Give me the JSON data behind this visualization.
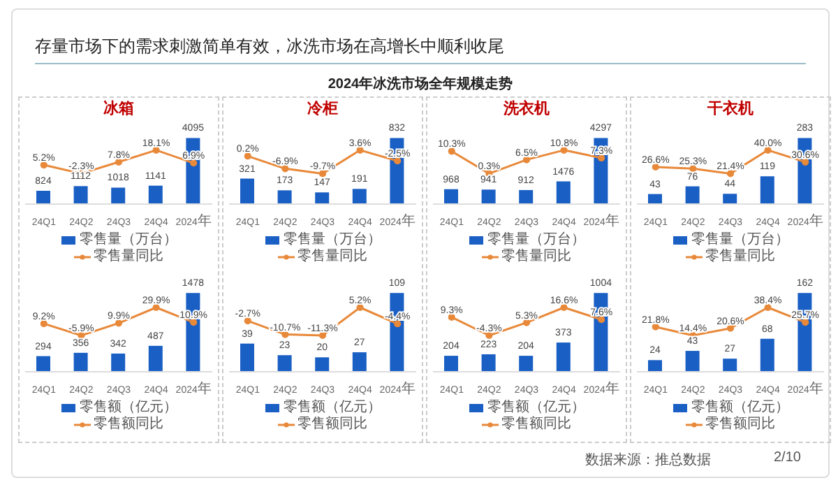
{
  "chart_data": [
    {
      "type": "other",
      "title": "存量市场下的需求刺激简单有效，冰洗市场在高增长中顺利收尾",
      "subtitle": "2024年冰洗市场全年规模走势",
      "annotations": [
        "数据来源：推总数据",
        "2/10"
      ]
    },
    {
      "type": "bar",
      "title": "冰箱",
      "categories": [
        "24Q1",
        "24Q2",
        "24Q3",
        "24Q4",
        "2024年"
      ],
      "series": [
        {
          "name": "零售量（万台）",
          "type": "bar",
          "color": "#1a5fc4",
          "values": [
            824,
            1112,
            1018,
            1141,
            4095
          ]
        },
        {
          "name": "零售量同比",
          "type": "line",
          "axis": "y2",
          "color": "#e8893a",
          "values": [
            5.2,
            -2.3,
            7.8,
            18.1,
            6.9
          ],
          "value_labels": [
            "5.2%",
            "-2.3%",
            "7.8%",
            "18.1%",
            "6.9%"
          ]
        }
      ],
      "data_labels": true,
      "legend": "bottom",
      "tick_labels": "x",
      "marker": "circle"
    },
    {
      "type": "bar",
      "title": "冷柜",
      "categories": [
        "24Q1",
        "24Q2",
        "24Q3",
        "24Q4",
        "2024年"
      ],
      "series": [
        {
          "name": "零售量（万台）",
          "type": "bar",
          "color": "#1a5fc4",
          "values": [
            321,
            173,
            147,
            191,
            832
          ]
        },
        {
          "name": "零售量同比",
          "type": "line",
          "axis": "y2",
          "color": "#e8893a",
          "values": [
            0.2,
            -6.9,
            -9.7,
            3.6,
            -2.5
          ],
          "value_labels": [
            "0.2%",
            "-6.9%",
            "-9.7%",
            "3.6%",
            "-2.5%"
          ]
        }
      ],
      "data_labels": true,
      "legend": "bottom",
      "tick_labels": "x",
      "marker": "circle"
    },
    {
      "type": "bar",
      "title": "洗衣机",
      "categories": [
        "24Q1",
        "24Q2",
        "24Q3",
        "24Q4",
        "2024年"
      ],
      "series": [
        {
          "name": "零售量（万台）",
          "type": "bar",
          "color": "#1a5fc4",
          "values": [
            968,
            941,
            912,
            1476,
            4297
          ]
        },
        {
          "name": "零售量同比",
          "type": "line",
          "axis": "y2",
          "color": "#e8893a",
          "values": [
            10.3,
            0.3,
            6.5,
            10.8,
            7.3
          ],
          "value_labels": [
            "10.3%",
            "0.3%",
            "6.5%",
            "10.8%",
            "7.3%"
          ]
        }
      ],
      "data_labels": true,
      "legend": "bottom",
      "tick_labels": "x",
      "marker": "circle"
    },
    {
      "type": "bar",
      "title": "干衣机",
      "categories": [
        "24Q1",
        "24Q2",
        "24Q3",
        "24Q4",
        "2024年"
      ],
      "series": [
        {
          "name": "零售量（万台）",
          "type": "bar",
          "color": "#1a5fc4",
          "values": [
            43,
            76,
            44,
            119,
            283
          ]
        },
        {
          "name": "零售量同比",
          "type": "line",
          "axis": "y2",
          "color": "#e8893a",
          "values": [
            26.6,
            25.3,
            21.4,
            40.0,
            30.6
          ],
          "value_labels": [
            "26.6%",
            "25.3%",
            "21.4%",
            "40.0%",
            "30.6%"
          ]
        }
      ],
      "data_labels": true,
      "legend": "bottom",
      "tick_labels": "x",
      "marker": "circle"
    },
    {
      "type": "bar",
      "categories": [
        "24Q1",
        "24Q2",
        "24Q3",
        "24Q4",
        "2024年"
      ],
      "series": [
        {
          "name": "零售额（亿元）",
          "type": "bar",
          "color": "#1a5fc4",
          "values": [
            294,
            356,
            342,
            487,
            1478
          ]
        },
        {
          "name": "零售额同比",
          "type": "line",
          "axis": "y2",
          "color": "#e8893a",
          "values": [
            9.2,
            -5.9,
            9.9,
            29.9,
            10.9
          ],
          "value_labels": [
            "9.2%",
            "-5.9%",
            "9.9%",
            "29.9%",
            "10.9%"
          ]
        }
      ],
      "data_labels": true,
      "legend": "bottom",
      "tick_labels": "x",
      "marker": "circle"
    },
    {
      "type": "bar",
      "categories": [
        "24Q1",
        "24Q2",
        "24Q3",
        "24Q4",
        "2024年"
      ],
      "series": [
        {
          "name": "零售额（亿元）",
          "type": "bar",
          "color": "#1a5fc4",
          "values": [
            39,
            23,
            20,
            27,
            109
          ]
        },
        {
          "name": "零售额同比",
          "type": "line",
          "axis": "y2",
          "color": "#e8893a",
          "values": [
            -2.7,
            -10.7,
            -11.3,
            5.2,
            -4.4
          ],
          "value_labels": [
            "-2.7%",
            "-10.7%",
            "-11.3%",
            "5.2%",
            "-4.4%"
          ]
        }
      ],
      "data_labels": true,
      "legend": "bottom",
      "tick_labels": "x",
      "marker": "circle"
    },
    {
      "type": "bar",
      "categories": [
        "24Q1",
        "24Q2",
        "24Q3",
        "24Q4",
        "2024年"
      ],
      "series": [
        {
          "name": "零售额（亿元）",
          "type": "bar",
          "color": "#1a5fc4",
          "values": [
            204,
            223,
            204,
            373,
            1004
          ]
        },
        {
          "name": "零售额同比",
          "type": "line",
          "axis": "y2",
          "color": "#e8893a",
          "values": [
            9.3,
            -4.3,
            5.3,
            16.6,
            7.6
          ],
          "value_labels": [
            "9.3%",
            "-4.3%",
            "5.3%",
            "16.6%",
            "7.6%"
          ]
        }
      ],
      "data_labels": true,
      "legend": "bottom",
      "tick_labels": "x",
      "marker": "circle"
    },
    {
      "type": "bar",
      "categories": [
        "24Q1",
        "24Q2",
        "24Q3",
        "24Q4",
        "2024年"
      ],
      "series": [
        {
          "name": "零售额（亿元）",
          "type": "bar",
          "color": "#1a5fc4",
          "values": [
            24,
            43,
            27,
            68,
            162
          ]
        },
        {
          "name": "零售额同比",
          "type": "line",
          "axis": "y2",
          "color": "#e8893a",
          "values": [
            21.8,
            14.4,
            20.6,
            38.4,
            25.7
          ],
          "value_labels": [
            "21.8%",
            "14.4%",
            "20.6%",
            "38.4%",
            "25.7%"
          ]
        }
      ],
      "data_labels": true,
      "legend": "bottom",
      "tick_labels": "x",
      "marker": "circle"
    }
  ]
}
